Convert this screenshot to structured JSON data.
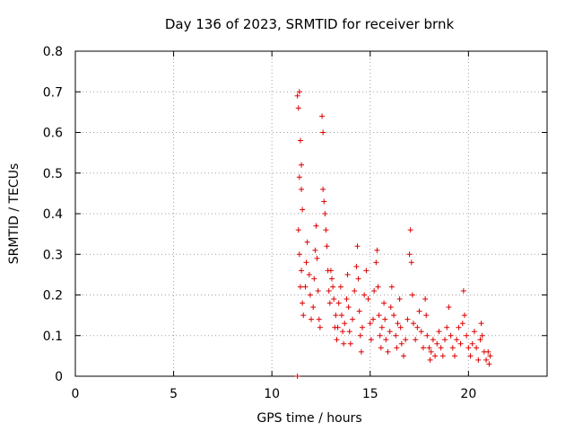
{
  "chart_data": {
    "type": "scatter",
    "title": "Day 136 of 2023, SRMTID for receiver brnk",
    "xlabel": "GPS time / hours",
    "ylabel": "SRMTID / TECUs",
    "xlim": [
      0,
      24
    ],
    "ylim": [
      0,
      0.8
    ],
    "xticks": [
      0,
      5,
      10,
      15,
      20
    ],
    "yticks": [
      0,
      0.1,
      0.2,
      0.3,
      0.4,
      0.5,
      0.6,
      0.7,
      0.8
    ],
    "xtick_labels": [
      "0",
      "5",
      "10",
      "15",
      "20"
    ],
    "ytick_labels": [
      "0",
      "0.1",
      "0.2",
      "0.3",
      "0.4",
      "0.5",
      "0.6",
      "0.7",
      "0.8"
    ],
    "grid": true,
    "series": [
      {
        "name": "SRMTID",
        "color": "#dd0000",
        "marker": "plus",
        "points": [
          [
            11.3,
            0.0
          ],
          [
            11.3,
            0.69
          ],
          [
            11.35,
            0.66
          ],
          [
            11.4,
            0.7
          ],
          [
            11.45,
            0.58
          ],
          [
            11.5,
            0.52
          ],
          [
            11.4,
            0.49
          ],
          [
            11.5,
            0.46
          ],
          [
            11.55,
            0.41
          ],
          [
            11.35,
            0.36
          ],
          [
            11.4,
            0.3
          ],
          [
            11.5,
            0.26
          ],
          [
            11.45,
            0.22
          ],
          [
            11.55,
            0.18
          ],
          [
            11.6,
            0.15
          ],
          [
            11.7,
            0.22
          ],
          [
            11.75,
            0.28
          ],
          [
            11.8,
            0.33
          ],
          [
            11.9,
            0.25
          ],
          [
            11.95,
            0.2
          ],
          [
            12.0,
            0.14
          ],
          [
            12.1,
            0.17
          ],
          [
            12.15,
            0.24
          ],
          [
            12.2,
            0.31
          ],
          [
            12.25,
            0.37
          ],
          [
            12.3,
            0.29
          ],
          [
            12.35,
            0.21
          ],
          [
            12.4,
            0.14
          ],
          [
            12.45,
            0.12
          ],
          [
            12.55,
            0.64
          ],
          [
            12.6,
            0.6
          ],
          [
            12.6,
            0.46
          ],
          [
            12.65,
            0.43
          ],
          [
            12.7,
            0.4
          ],
          [
            12.75,
            0.36
          ],
          [
            12.8,
            0.32
          ],
          [
            12.85,
            0.26
          ],
          [
            12.9,
            0.21
          ],
          [
            12.95,
            0.18
          ],
          [
            13.0,
            0.26
          ],
          [
            13.05,
            0.24
          ],
          [
            13.1,
            0.22
          ],
          [
            13.15,
            0.19
          ],
          [
            13.2,
            0.12
          ],
          [
            13.25,
            0.15
          ],
          [
            13.3,
            0.09
          ],
          [
            13.35,
            0.12
          ],
          [
            13.4,
            0.18
          ],
          [
            13.5,
            0.22
          ],
          [
            13.55,
            0.15
          ],
          [
            13.6,
            0.11
          ],
          [
            13.65,
            0.08
          ],
          [
            13.7,
            0.13
          ],
          [
            13.8,
            0.19
          ],
          [
            13.85,
            0.25
          ],
          [
            13.9,
            0.17
          ],
          [
            13.95,
            0.11
          ],
          [
            14.0,
            0.08
          ],
          [
            14.1,
            0.14
          ],
          [
            14.2,
            0.21
          ],
          [
            14.3,
            0.27
          ],
          [
            14.35,
            0.32
          ],
          [
            14.4,
            0.24
          ],
          [
            14.45,
            0.16
          ],
          [
            14.5,
            0.1
          ],
          [
            14.55,
            0.06
          ],
          [
            14.6,
            0.12
          ],
          [
            14.7,
            0.2
          ],
          [
            14.8,
            0.26
          ],
          [
            14.9,
            0.19
          ],
          [
            15.0,
            0.13
          ],
          [
            15.05,
            0.09
          ],
          [
            15.15,
            0.14
          ],
          [
            15.2,
            0.21
          ],
          [
            15.3,
            0.28
          ],
          [
            15.35,
            0.31
          ],
          [
            15.4,
            0.22
          ],
          [
            15.45,
            0.15
          ],
          [
            15.5,
            0.1
          ],
          [
            15.55,
            0.07
          ],
          [
            15.6,
            0.12
          ],
          [
            15.7,
            0.18
          ],
          [
            15.75,
            0.14
          ],
          [
            15.8,
            0.09
          ],
          [
            15.9,
            0.06
          ],
          [
            16.0,
            0.11
          ],
          [
            16.05,
            0.17
          ],
          [
            16.1,
            0.22
          ],
          [
            16.2,
            0.15
          ],
          [
            16.3,
            0.1
          ],
          [
            16.35,
            0.07
          ],
          [
            16.4,
            0.13
          ],
          [
            16.5,
            0.19
          ],
          [
            16.55,
            0.12
          ],
          [
            16.6,
            0.08
          ],
          [
            16.7,
            0.05
          ],
          [
            16.8,
            0.09
          ],
          [
            16.9,
            0.14
          ],
          [
            17.0,
            0.3
          ],
          [
            17.05,
            0.36
          ],
          [
            17.1,
            0.28
          ],
          [
            17.15,
            0.2
          ],
          [
            17.2,
            0.13
          ],
          [
            17.3,
            0.09
          ],
          [
            17.4,
            0.12
          ],
          [
            17.5,
            0.16
          ],
          [
            17.6,
            0.11
          ],
          [
            17.7,
            0.07
          ],
          [
            17.8,
            0.19
          ],
          [
            17.85,
            0.15
          ],
          [
            17.9,
            0.1
          ],
          [
            18.0,
            0.07
          ],
          [
            18.05,
            0.04
          ],
          [
            18.1,
            0.06
          ],
          [
            18.2,
            0.09
          ],
          [
            18.3,
            0.05
          ],
          [
            18.4,
            0.08
          ],
          [
            18.5,
            0.11
          ],
          [
            18.6,
            0.07
          ],
          [
            18.7,
            0.05
          ],
          [
            18.8,
            0.09
          ],
          [
            18.9,
            0.12
          ],
          [
            19.0,
            0.17
          ],
          [
            19.1,
            0.1
          ],
          [
            19.2,
            0.07
          ],
          [
            19.3,
            0.05
          ],
          [
            19.4,
            0.09
          ],
          [
            19.5,
            0.12
          ],
          [
            19.6,
            0.08
          ],
          [
            19.7,
            0.13
          ],
          [
            19.75,
            0.21
          ],
          [
            19.8,
            0.15
          ],
          [
            19.9,
            0.1
          ],
          [
            20.0,
            0.07
          ],
          [
            20.1,
            0.05
          ],
          [
            20.2,
            0.08
          ],
          [
            20.3,
            0.11
          ],
          [
            20.4,
            0.07
          ],
          [
            20.5,
            0.04
          ],
          [
            20.6,
            0.09
          ],
          [
            20.65,
            0.13
          ],
          [
            20.7,
            0.1
          ],
          [
            20.8,
            0.06
          ],
          [
            20.9,
            0.04
          ],
          [
            21.0,
            0.06
          ],
          [
            21.05,
            0.03
          ],
          [
            21.1,
            0.05
          ]
        ]
      }
    ]
  }
}
